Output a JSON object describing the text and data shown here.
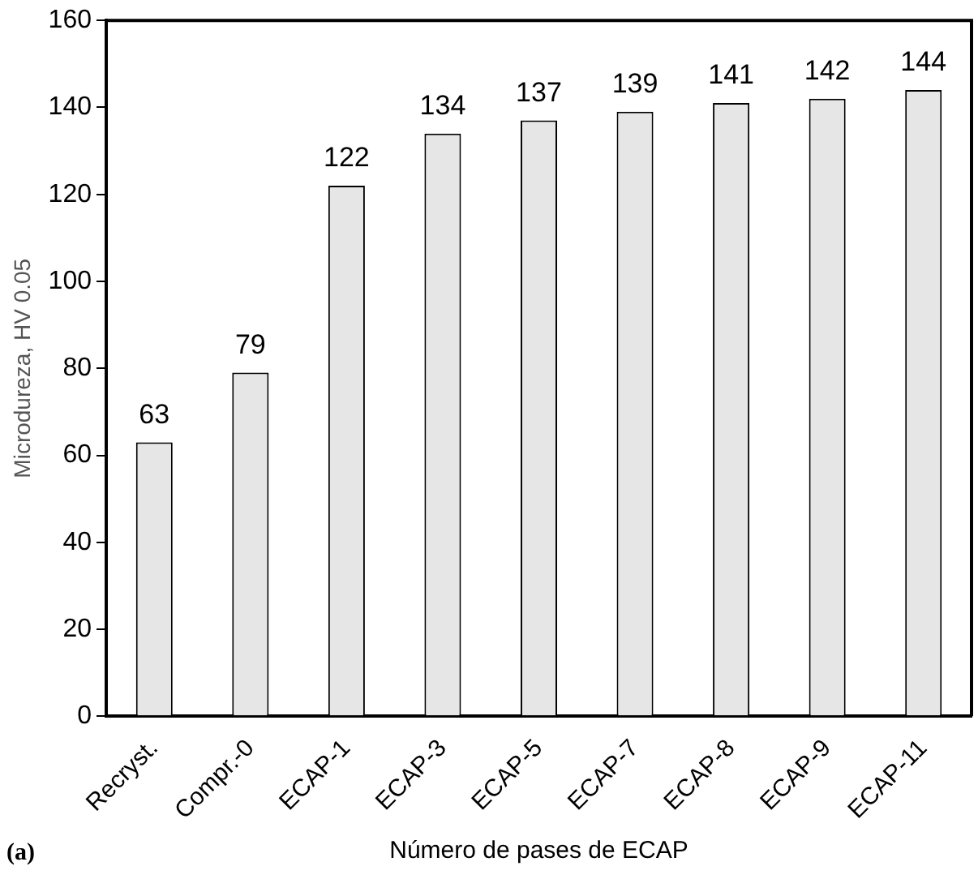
{
  "chart_data": {
    "type": "bar",
    "xlabel": "Número de pases de ECAP",
    "ylabel": "Microdureza, HV 0.05",
    "categories": [
      "Recryst.",
      "Compr.-0",
      "ECAP-1",
      "ECAP-3",
      "ECAP-5",
      "ECAP-7",
      "ECAP-8",
      "ECAP-9",
      "ECAP-11"
    ],
    "values": [
      63,
      79,
      122,
      134,
      137,
      139,
      141,
      142,
      144
    ],
    "color": "#e6e6e6",
    "ylim": [
      0,
      160
    ],
    "yticks": [
      0,
      20,
      40,
      60,
      80,
      100,
      120,
      140,
      160
    ],
    "grid": false,
    "data_labels": true,
    "annotations": [
      "(a)"
    ]
  }
}
